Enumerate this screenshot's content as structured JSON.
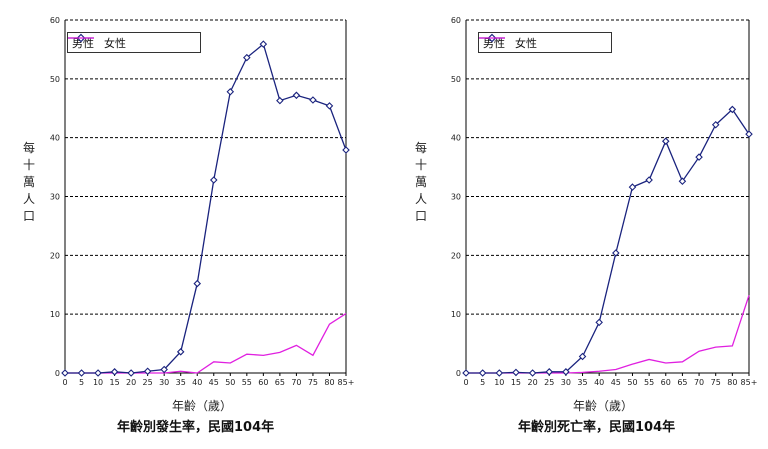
{
  "colors": {
    "male": "#1a237e",
    "female": "#e020e0",
    "grid": "#000000"
  },
  "chart_data": [
    {
      "type": "line",
      "title": "年齡別發生率，民國104年",
      "xlabel": "年齡（歲）",
      "ylabel": "每十萬人口",
      "categories": [
        "0",
        "5",
        "10",
        "15",
        "20",
        "25",
        "30",
        "35",
        "40",
        "45",
        "50",
        "55",
        "60",
        "65",
        "70",
        "75",
        "80",
        "85+"
      ],
      "ylim": [
        0,
        60
      ],
      "yticks": [
        "0",
        "10",
        "20",
        "30",
        "40",
        "50",
        "60"
      ],
      "grid": "horizontal dashed",
      "legend": "top-left",
      "series": [
        {
          "name": "男性",
          "values": [
            0,
            0,
            0,
            0.2,
            0,
            0.3,
            0.6,
            3.6,
            15.2,
            32.8,
            47.8,
            53.6,
            55.9,
            46.3,
            47.2,
            46.4,
            45.4,
            37.9
          ]
        },
        {
          "name": "女性",
          "values": [
            0,
            0,
            0,
            0,
            0,
            0,
            0,
            0.3,
            0,
            1.9,
            1.7,
            3.2,
            3.0,
            3.5,
            4.7,
            3.0,
            8.3,
            10.1
          ]
        }
      ]
    },
    {
      "type": "line",
      "title": "年齡別死亡率，民國104年",
      "xlabel": "年齡（歲）",
      "ylabel": "每十萬人口",
      "categories": [
        "0",
        "5",
        "10",
        "15",
        "20",
        "25",
        "30",
        "35",
        "40",
        "45",
        "50",
        "55",
        "60",
        "65",
        "70",
        "75",
        "80",
        "85+"
      ],
      "ylim": [
        0,
        60
      ],
      "yticks": [
        "0",
        "10",
        "20",
        "30",
        "40",
        "50",
        "60"
      ],
      "grid": "horizontal dashed",
      "legend": "top-left",
      "series": [
        {
          "name": "男性",
          "values": [
            0,
            0,
            0,
            0.1,
            0,
            0.2,
            0.2,
            2.8,
            8.6,
            20.4,
            31.6,
            32.8,
            39.4,
            32.6,
            36.7,
            42.2,
            44.8,
            40.6
          ]
        },
        {
          "name": "女性",
          "values": [
            0,
            0,
            0,
            0,
            0,
            0,
            0,
            0.1,
            0.3,
            0.6,
            1.5,
            2.3,
            1.7,
            1.9,
            3.7,
            4.4,
            4.6,
            13.2
          ]
        }
      ]
    }
  ]
}
